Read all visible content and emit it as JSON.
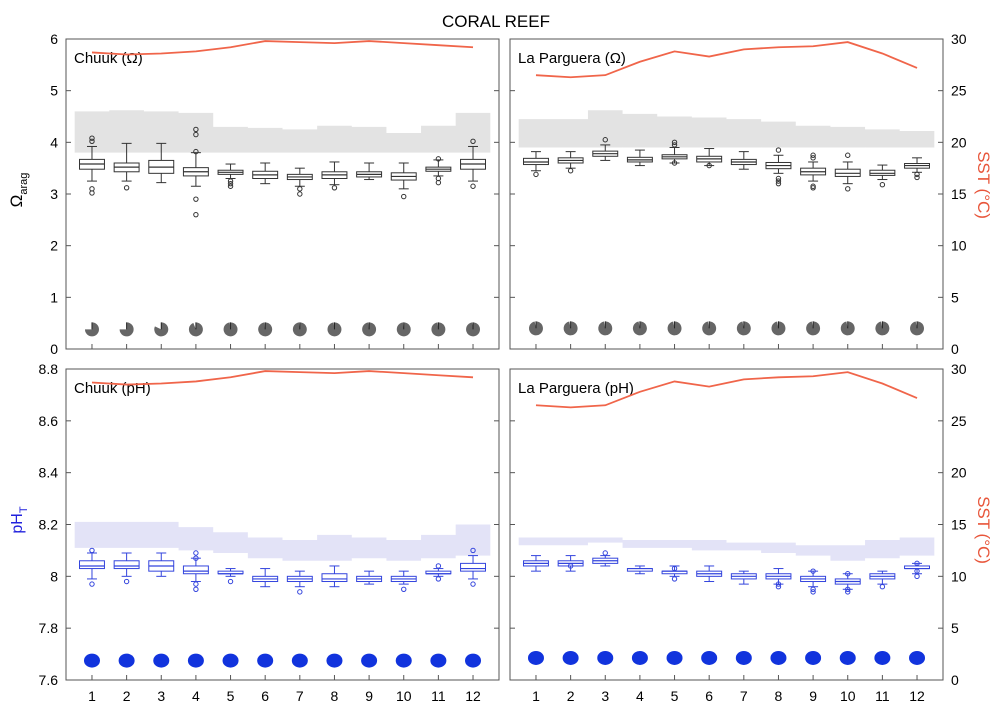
{
  "title": "CORAL REEF",
  "x_ticks": [
    "1",
    "2",
    "3",
    "4",
    "5",
    "6",
    "7",
    "8",
    "9",
    "10",
    "11",
    "12"
  ],
  "y_left_top": {
    "label_main": "Ω",
    "label_sub": "arag",
    "ticks": [
      "0",
      "1",
      "2",
      "3",
      "4",
      "5",
      "6"
    ],
    "color": "#000000"
  },
  "y_left_bottom": {
    "label_main": "pH",
    "label_sub": "T",
    "ticks": [
      "7.6",
      "7.8",
      "8",
      "8.2",
      "8.4",
      "8.6",
      "8.8"
    ],
    "color": "#2222dd"
  },
  "y_right": {
    "label": "SST (°C)",
    "ticks": [
      "0",
      "5",
      "10",
      "15",
      "20",
      "25",
      "30"
    ],
    "color": "#e8553a"
  },
  "colors": {
    "sst_line": "#f0654a",
    "omega_box": "#333333",
    "ph_box": "#3344dd",
    "omega_dot": "#666666",
    "ph_dot": "#1133dd",
    "band_gray": "#e3e3e3",
    "band_blue": "#e3e3f7"
  },
  "chart_data": [
    {
      "type": "box",
      "panel": "Chuuk (Ω)",
      "title": "Chuuk (Ω)",
      "xlabel": "",
      "ylabel": "Ωarag",
      "ylim": [
        0,
        6
      ],
      "y2label": "SST (°C)",
      "y2lim": [
        0,
        30
      ],
      "months": [
        1,
        2,
        3,
        4,
        5,
        6,
        7,
        8,
        9,
        10,
        11,
        12
      ],
      "boxes": {
        "median": [
          3.58,
          3.52,
          3.52,
          3.43,
          3.42,
          3.37,
          3.33,
          3.37,
          3.38,
          3.34,
          3.48,
          3.58
        ],
        "q1": [
          3.48,
          3.43,
          3.4,
          3.35,
          3.38,
          3.3,
          3.28,
          3.3,
          3.33,
          3.27,
          3.44,
          3.48
        ],
        "q3": [
          3.67,
          3.6,
          3.65,
          3.51,
          3.46,
          3.44,
          3.38,
          3.43,
          3.43,
          3.41,
          3.52,
          3.67
        ],
        "wlow": [
          3.25,
          3.25,
          3.22,
          3.15,
          3.3,
          3.2,
          3.15,
          3.18,
          3.28,
          3.1,
          3.35,
          3.25
        ],
        "whigh": [
          3.92,
          3.98,
          3.98,
          3.8,
          3.58,
          3.6,
          3.5,
          3.62,
          3.6,
          3.6,
          3.66,
          3.92
        ],
        "outliers": [
          [
            4.08,
            4.02,
            3.1,
            3.02
          ],
          [
            3.12
          ],
          [],
          [
            4.25,
            4.15,
            3.82,
            2.6,
            2.9
          ],
          [
            3.25,
            3.2,
            3.15
          ],
          [],
          [
            3.1,
            3.0
          ],
          [
            3.12
          ],
          [],
          [
            2.95
          ],
          [
            3.68,
            3.3,
            3.22
          ],
          [
            4.02,
            3.15
          ]
        ]
      },
      "band_low": [
        3.8,
        3.8,
        3.8,
        3.8,
        3.8,
        3.8,
        3.8,
        3.8,
        3.8,
        3.8,
        3.8,
        3.8
      ],
      "band_high": [
        4.6,
        4.62,
        4.6,
        4.57,
        4.3,
        4.28,
        4.25,
        4.32,
        4.3,
        4.18,
        4.32,
        4.57
      ],
      "sst": [
        28.7,
        28.5,
        28.6,
        28.8,
        29.2,
        29.8,
        29.7,
        29.6,
        29.8,
        29.6,
        29.4,
        29.2
      ],
      "aragonite_saturation_pie_fraction": [
        0.75,
        0.75,
        0.82,
        0.94,
        0.98,
        0.98,
        0.98,
        0.98,
        0.98,
        0.98,
        0.98,
        0.98
      ],
      "pie_y": 0.38
    },
    {
      "type": "box",
      "panel": "La Parguera (Ω)",
      "title": "La Parguera (Ω)",
      "xlabel": "",
      "ylabel": "Ωarag",
      "ylim": [
        0,
        6
      ],
      "y2label": "SST (°C)",
      "y2lim": [
        0,
        30
      ],
      "months": [
        1,
        2,
        3,
        4,
        5,
        6,
        7,
        8,
        9,
        10,
        11,
        12
      ],
      "boxes": {
        "median": [
          3.62,
          3.65,
          3.78,
          3.66,
          3.72,
          3.68,
          3.62,
          3.55,
          3.43,
          3.4,
          3.4,
          3.55
        ],
        "q1": [
          3.57,
          3.6,
          3.73,
          3.62,
          3.68,
          3.62,
          3.57,
          3.49,
          3.37,
          3.34,
          3.36,
          3.5
        ],
        "q3": [
          3.69,
          3.7,
          3.83,
          3.71,
          3.76,
          3.73,
          3.67,
          3.61,
          3.5,
          3.48,
          3.46,
          3.59
        ],
        "wlow": [
          3.45,
          3.5,
          3.65,
          3.55,
          3.6,
          3.55,
          3.48,
          3.4,
          3.25,
          3.2,
          3.28,
          3.42
        ],
        "whigh": [
          3.82,
          3.82,
          3.95,
          3.85,
          3.9,
          3.88,
          3.82,
          3.75,
          3.62,
          3.62,
          3.56,
          3.7
        ],
        "outliers": [
          [
            3.38
          ],
          [
            3.45
          ],
          [
            4.05
          ],
          [],
          [
            4.0,
            3.95,
            3.6
          ],
          [
            3.55
          ],
          [],
          [
            3.85,
            3.3,
            3.25,
            3.2
          ],
          [
            3.75,
            3.7,
            3.15,
            3.12
          ],
          [
            3.75,
            3.1
          ],
          [
            3.18
          ],
          [
            3.38,
            3.32
          ]
        ]
      },
      "band_low": [
        3.9,
        3.9,
        3.9,
        3.9,
        3.9,
        3.9,
        3.9,
        3.9,
        3.9,
        3.9,
        3.9,
        3.9
      ],
      "band_high": [
        4.45,
        4.45,
        4.62,
        4.55,
        4.5,
        4.48,
        4.45,
        4.4,
        4.32,
        4.3,
        4.25,
        4.22
      ],
      "sst": [
        26.5,
        26.3,
        26.5,
        27.8,
        28.8,
        28.3,
        29.0,
        29.2,
        29.3,
        29.7,
        28.6,
        27.2
      ],
      "aragonite_saturation_pie_fraction": [
        0.97,
        0.97,
        0.97,
        0.97,
        0.97,
        0.97,
        0.97,
        0.97,
        0.97,
        0.97,
        0.97,
        0.97
      ],
      "pie_y": 0.4
    },
    {
      "type": "box",
      "panel": "Chuuk (pH)",
      "title": "Chuuk (pH)",
      "xlabel": "",
      "ylabel": "pHT",
      "ylim": [
        7.6,
        8.8
      ],
      "y2label": "SST (°C)",
      "y2lim": [
        0,
        30
      ],
      "months": [
        1,
        2,
        3,
        4,
        5,
        6,
        7,
        8,
        9,
        10,
        11,
        12
      ],
      "boxes": {
        "median": [
          8.04,
          8.04,
          8.04,
          8.02,
          8.01,
          7.99,
          7.99,
          7.99,
          7.99,
          7.99,
          8.01,
          8.03
        ],
        "q1": [
          8.03,
          8.03,
          8.02,
          8.01,
          8.01,
          7.98,
          7.98,
          7.98,
          7.98,
          7.98,
          8.01,
          8.02
        ],
        "q3": [
          8.06,
          8.06,
          8.06,
          8.04,
          8.02,
          8.0,
          8.0,
          8.01,
          8.0,
          8.0,
          8.02,
          8.05
        ],
        "wlow": [
          7.99,
          8.0,
          8.0,
          7.98,
          8.0,
          7.96,
          7.96,
          7.96,
          7.97,
          7.97,
          8.0,
          7.99
        ],
        "whigh": [
          8.09,
          8.09,
          8.09,
          8.07,
          8.03,
          8.03,
          8.02,
          8.04,
          8.02,
          8.02,
          8.03,
          8.08
        ],
        "outliers": [
          [
            8.1,
            7.97
          ],
          [
            7.98
          ],
          [],
          [
            8.09,
            8.07,
            7.97,
            7.95
          ],
          [
            7.98
          ],
          [],
          [
            7.94
          ],
          [],
          [],
          [
            7.95
          ],
          [
            8.04,
            7.99
          ],
          [
            8.1,
            7.97
          ]
        ]
      },
      "band_low": [
        8.11,
        8.11,
        8.11,
        8.1,
        8.09,
        8.07,
        8.06,
        8.06,
        8.07,
        8.06,
        8.07,
        8.08
      ],
      "band_high": [
        8.21,
        8.21,
        8.21,
        8.19,
        8.17,
        8.15,
        8.14,
        8.16,
        8.15,
        8.14,
        8.16,
        8.2
      ],
      "sst": [
        28.7,
        28.5,
        28.6,
        28.8,
        29.2,
        29.8,
        29.7,
        29.6,
        29.8,
        29.6,
        29.4,
        29.2
      ],
      "saturation_circle_fraction": [
        1,
        1,
        1,
        1,
        1,
        1,
        1,
        1,
        1,
        1,
        1,
        1
      ],
      "circle_y": 7.675
    },
    {
      "type": "box",
      "panel": "La Parguera (pH)",
      "title": "La Parguera (pH)",
      "xlabel": "",
      "ylabel": "pHT",
      "ylim": [
        7.6,
        8.8
      ],
      "y2label": "SST (°C)",
      "y2lim": [
        0,
        30
      ],
      "months": [
        1,
        2,
        3,
        4,
        5,
        6,
        7,
        8,
        9,
        10,
        11,
        12
      ],
      "boxes": {
        "median": [
          8.05,
          8.05,
          8.06,
          8.03,
          8.02,
          8.01,
          8.0,
          8.0,
          7.99,
          7.98,
          8.0,
          8.03
        ],
        "q1": [
          8.04,
          8.04,
          8.05,
          8.02,
          8.01,
          8.0,
          7.99,
          7.99,
          7.98,
          7.97,
          7.99,
          8.03
        ],
        "q3": [
          8.06,
          8.06,
          8.07,
          8.03,
          8.02,
          8.02,
          8.01,
          8.01,
          8.0,
          7.99,
          8.01,
          8.04
        ],
        "wlow": [
          8.02,
          8.02,
          8.04,
          8.01,
          8.0,
          7.98,
          7.97,
          7.97,
          7.96,
          7.95,
          7.97,
          8.01
        ],
        "whigh": [
          8.08,
          8.08,
          8.08,
          8.04,
          8.04,
          8.04,
          8.02,
          8.03,
          8.02,
          8.01,
          8.02,
          8.05
        ],
        "outliers": [
          [],
          [
            8.04
          ],
          [
            8.09
          ],
          [],
          [
            8.03,
            7.99
          ],
          [],
          [],
          [
            7.97,
            7.96
          ],
          [
            8.02,
            7.95,
            7.94
          ],
          [
            8.01,
            7.95,
            7.94
          ],
          [
            7.96
          ],
          [
            8.05,
            8.02,
            8.0
          ]
        ]
      },
      "band_low": [
        8.12,
        8.12,
        8.13,
        8.11,
        8.11,
        8.1,
        8.1,
        8.09,
        8.08,
        8.06,
        8.07,
        8.08
      ],
      "band_high": [
        8.15,
        8.15,
        8.15,
        8.14,
        8.14,
        8.14,
        8.13,
        8.13,
        8.12,
        8.12,
        8.14,
        8.15
      ],
      "sst": [
        26.5,
        26.3,
        26.5,
        27.8,
        28.8,
        28.3,
        29.0,
        29.2,
        29.3,
        29.7,
        28.6,
        27.2
      ],
      "saturation_circle_fraction": [
        1,
        1,
        1,
        1,
        1,
        1,
        1,
        1,
        1,
        1,
        1,
        1
      ],
      "circle_y": 7.685
    }
  ]
}
